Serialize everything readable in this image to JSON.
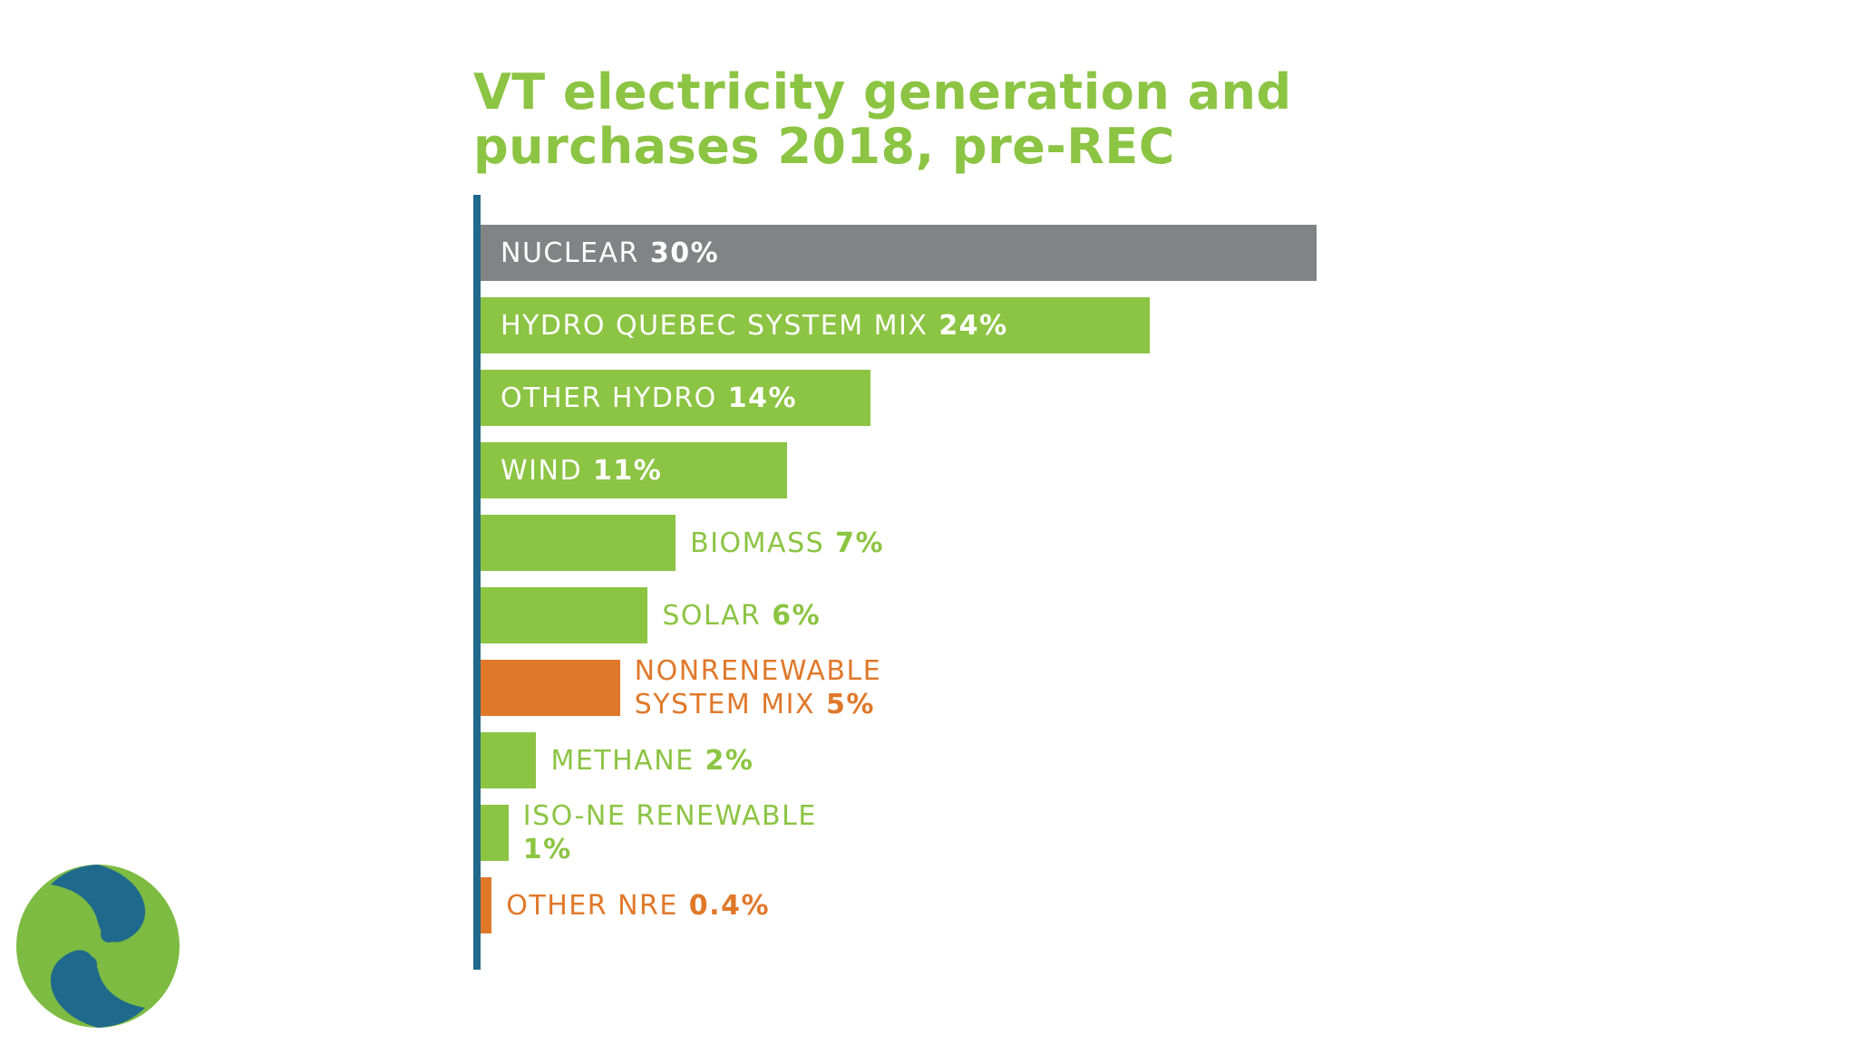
{
  "chart_data": {
    "type": "bar",
    "orientation": "horizontal",
    "title_lines": [
      "VT electricity generation and",
      "purchases 2018, pre-REC"
    ],
    "unit": "%",
    "categories": [
      "NUCLEAR",
      "HYDRO QUEBEC SYSTEM MIX",
      "OTHER HYDRO",
      "WIND",
      "BIOMASS",
      "SOLAR",
      "NONRENEWABLE SYSTEM MIX",
      "METHANE",
      "ISO-NE RENEWABLE",
      "OTHER NRE"
    ],
    "values": [
      30,
      24,
      14,
      11,
      7,
      6,
      5,
      2,
      1,
      0.4
    ],
    "value_labels": [
      "30%",
      "24%",
      "14%",
      "11%",
      "7%",
      "6%",
      "5%",
      "2%",
      "1%",
      "0.4%"
    ],
    "label_lines": [
      [
        "NUCLEAR"
      ],
      [
        "HYDRO QUEBEC SYSTEM MIX"
      ],
      [
        "OTHER HYDRO"
      ],
      [
        "WIND"
      ],
      [
        "BIOMASS"
      ],
      [
        "SOLAR"
      ],
      [
        "NONRENEWABLE",
        "SYSTEM MIX"
      ],
      [
        "METHANE"
      ],
      [
        "ISO-NE RENEWABLE",
        ""
      ],
      [
        "OTHER NRE"
      ]
    ],
    "bar_colors": [
      "#818385",
      "#8cc443",
      "#8cc443",
      "#8cc443",
      "#8cc443",
      "#8cc443",
      "#e0782a",
      "#8cc443",
      "#8cc443",
      "#e0782a"
    ],
    "label_colors": [
      "#ffffff",
      "#ffffff",
      "#ffffff",
      "#ffffff",
      "#8cc443",
      "#8cc443",
      "#e0782a",
      "#8cc443",
      "#8cc443",
      "#e0782a"
    ],
    "label_inside": [
      true,
      true,
      true,
      true,
      false,
      false,
      false,
      false,
      false,
      false
    ],
    "xlim": [
      0,
      30
    ],
    "grid": false,
    "legend": "none"
  },
  "colors": {
    "title": "#8cc443",
    "axis_line": "#1f6a8c",
    "logo_green": "#7dbb42",
    "logo_blue": "#1f6a8c"
  },
  "logo": {
    "name": "swirl-logo"
  }
}
